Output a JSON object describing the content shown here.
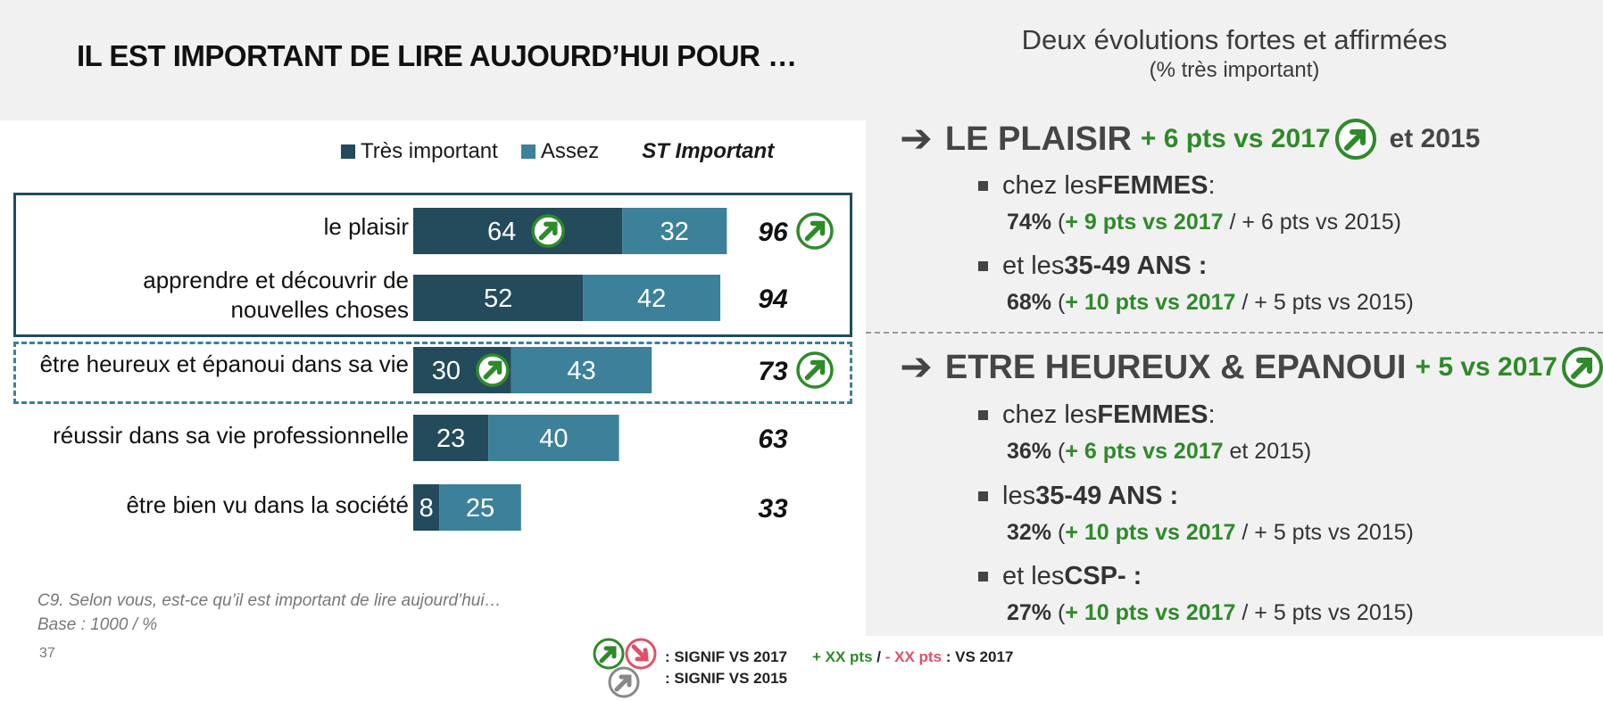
{
  "title": "IL EST IMPORTANT DE LIRE AUJOURD’HUI POUR …",
  "right_title": {
    "line1": "Deux évolutions fortes et affirmées",
    "line2": "(% très important)"
  },
  "colors": {
    "tres": "#234b5b",
    "assez": "#3c8199",
    "green": "#2f8a2a",
    "red": "#e0506a",
    "grey": "#888888"
  },
  "chart_data": {
    "type": "bar",
    "stacked": true,
    "orientation": "horizontal",
    "categories": [
      "le plaisir",
      "apprendre et découvrir de nouvelles choses",
      "être heureux et épanoui dans sa vie",
      "réussir dans sa vie professionnelle",
      "être bien vu dans la société"
    ],
    "series": [
      {
        "name": "Très important",
        "values": [
          64,
          52,
          30,
          23,
          8
        ]
      },
      {
        "name": "Assez",
        "values": [
          32,
          42,
          43,
          40,
          25
        ]
      }
    ],
    "totals_label": "ST Important",
    "totals": [
      96,
      94,
      73,
      63,
      33
    ],
    "signif_tres": [
      true,
      false,
      true,
      false,
      false
    ],
    "signif_total": [
      true,
      false,
      true,
      false,
      false
    ],
    "legend_position": "top"
  },
  "chart_labels": {
    "cat0": "le plaisir",
    "cat1a": "apprendre et découvrir de",
    "cat1b": "nouvelles choses",
    "cat2": "être heureux et épanoui dans sa vie",
    "cat3": "réussir dans sa vie professionnelle",
    "cat4": "être bien vu dans la société"
  },
  "legend": {
    "tres": "Très important",
    "assez": "Assez",
    "st": "ST Important"
  },
  "footnote": {
    "line1": "C9. Selon vous, est-ce qu’il est important de lire aujourd’hui…",
    "line2": "Base : 1000 / %"
  },
  "page_number": "37",
  "section1": {
    "title": "LE PLAISIR",
    "green": "+ 6 pts vs 2017",
    "tail": "et 2015",
    "b1_pre": "chez les ",
    "b1_bold": "FEMMES",
    "b1_post": " :",
    "s1_val": "74%",
    "s1_open": " (",
    "s1_green": "+ 9 pts vs 2017",
    "s1_rest": " / + 6 pts vs 2015)",
    "b2_pre": "et les ",
    "b2_bold": "35-49 ANS :",
    "s2_val": "68%",
    "s2_open": " (",
    "s2_green": "+ 10 pts vs 2017",
    "s2_rest": " / + 5 pts vs 2015)"
  },
  "section2": {
    "title": "ETRE HEUREUX & EPANOUI",
    "green": "+ 5 vs 2017",
    "b1_pre": "chez les ",
    "b1_bold": "FEMMES",
    "b1_post": " :",
    "s1_val": "36%",
    "s1_open": " (",
    "s1_green": "+ 6 pts vs 2017",
    "s1_rest": " et 2015)",
    "b2_pre": "les ",
    "b2_bold": "35-49 ANS :",
    "s2_val": "32%",
    "s2_open": " (",
    "s2_green": "+ 10 pts vs 2017",
    "s2_rest": " / + 5 pts vs 2015)",
    "b3_pre": "et les ",
    "b3_bold": "CSP- :",
    "s3_val": "27%",
    "s3_open": " (",
    "s3_green": "+ 10 pts vs 2017",
    "s3_rest": " / + 5 pts vs 2015)"
  },
  "bottom_legend": {
    "signif2017": ": SIGNIF VS 2017",
    "signif2015": ": SIGNIF VS 2015",
    "plus": "+ XX pts",
    "slash": " / ",
    "minus": "- XX pts",
    "vs": " : VS 2017"
  }
}
